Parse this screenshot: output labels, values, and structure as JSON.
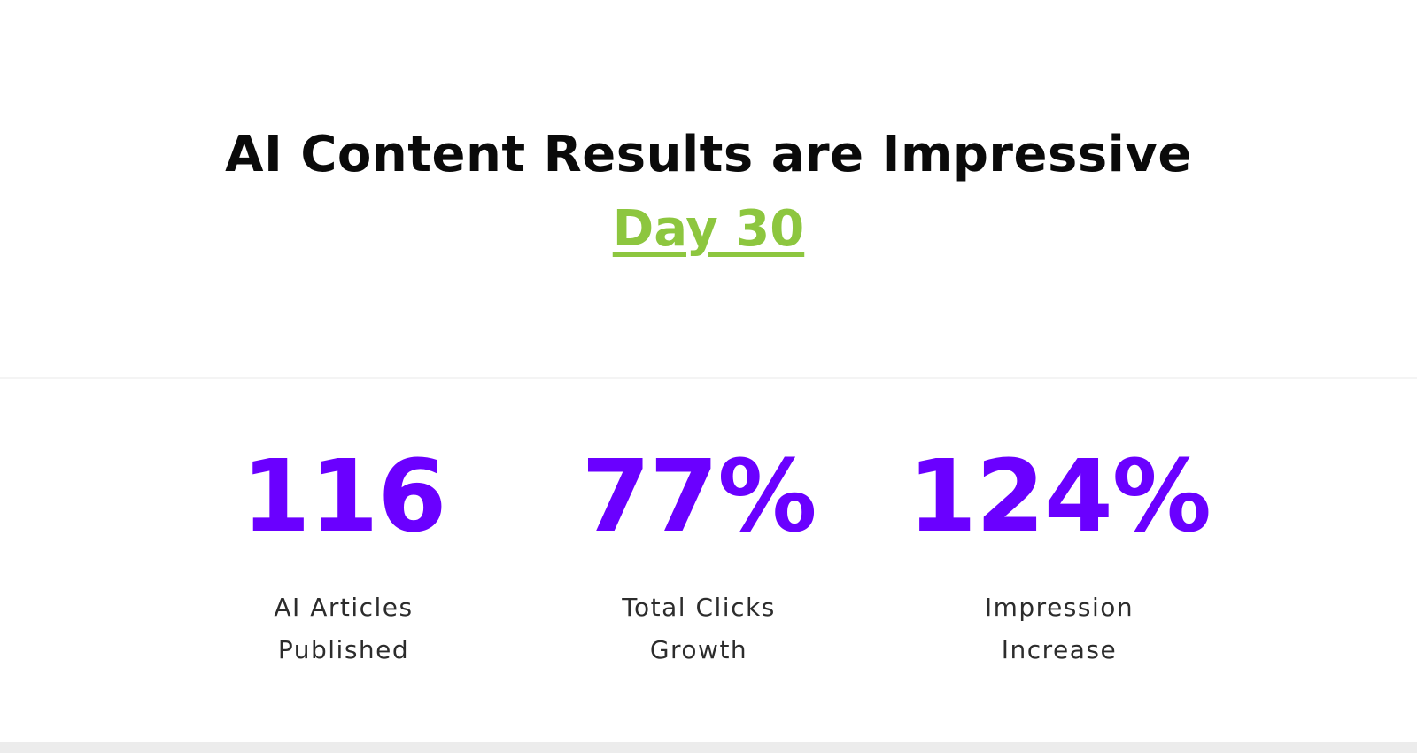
{
  "header": {
    "title": "AI Content Results are Impressive",
    "subtitle": "Day 30"
  },
  "stats": [
    {
      "value": "116",
      "label": "AI Articles Published"
    },
    {
      "value": "77%",
      "label": "Total Clicks Growth"
    },
    {
      "value": "124%",
      "label": "Impression Increase"
    }
  ]
}
